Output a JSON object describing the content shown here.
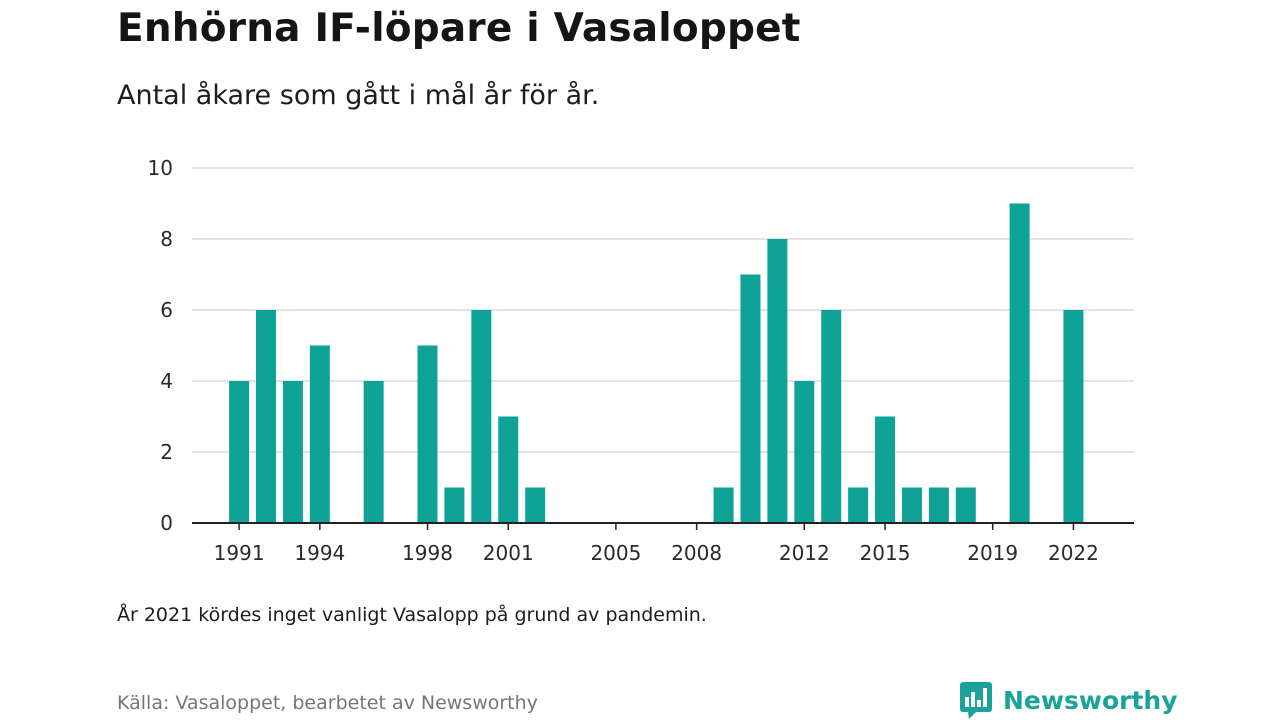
{
  "title": "Enhörna IF-löpare i Vasaloppet",
  "subtitle": "Antal åkare som gått i mål år för år.",
  "note": "År 2021 kördes inget vanligt Vasalopp på grund av pandemin.",
  "source": "Källa: Vasaloppet, bearbetet av Newsworthy",
  "brand": {
    "name": "Newsworthy",
    "icon": "newsworthy-logo-icon"
  },
  "colors": {
    "bar": "#0fa398",
    "grid": "#dcdcdc",
    "axis": "#222222",
    "tick_text": "#2a2a2a"
  },
  "chart_data": {
    "type": "bar",
    "title": "Enhörna IF-löpare i Vasaloppet",
    "subtitle": "Antal åkare som gått i mål år för år.",
    "xlabel": "",
    "ylabel": "",
    "ylim": [
      0,
      10
    ],
    "yticks": [
      0,
      2,
      4,
      6,
      8,
      10
    ],
    "xticks": [
      1991,
      1994,
      1998,
      2001,
      2005,
      2008,
      2012,
      2015,
      2019,
      2022
    ],
    "xlim": [
      1989.25,
      2024.25
    ],
    "grid": true,
    "legend": false,
    "points": [
      {
        "year": 1991,
        "value": 4
      },
      {
        "year": 1992,
        "value": 6
      },
      {
        "year": 1993,
        "value": 4
      },
      {
        "year": 1994,
        "value": 5
      },
      {
        "year": 1996,
        "value": 4
      },
      {
        "year": 1998,
        "value": 5
      },
      {
        "year": 1999,
        "value": 1
      },
      {
        "year": 2000,
        "value": 6
      },
      {
        "year": 2001,
        "value": 3
      },
      {
        "year": 2002,
        "value": 1
      },
      {
        "year": 2009,
        "value": 1
      },
      {
        "year": 2010,
        "value": 7
      },
      {
        "year": 2011,
        "value": 8
      },
      {
        "year": 2012,
        "value": 4
      },
      {
        "year": 2013,
        "value": 6
      },
      {
        "year": 2014,
        "value": 1
      },
      {
        "year": 2015,
        "value": 3
      },
      {
        "year": 2016,
        "value": 1
      },
      {
        "year": 2017,
        "value": 1
      },
      {
        "year": 2018,
        "value": 1
      },
      {
        "year": 2020,
        "value": 9
      },
      {
        "year": 2022,
        "value": 6
      }
    ]
  }
}
